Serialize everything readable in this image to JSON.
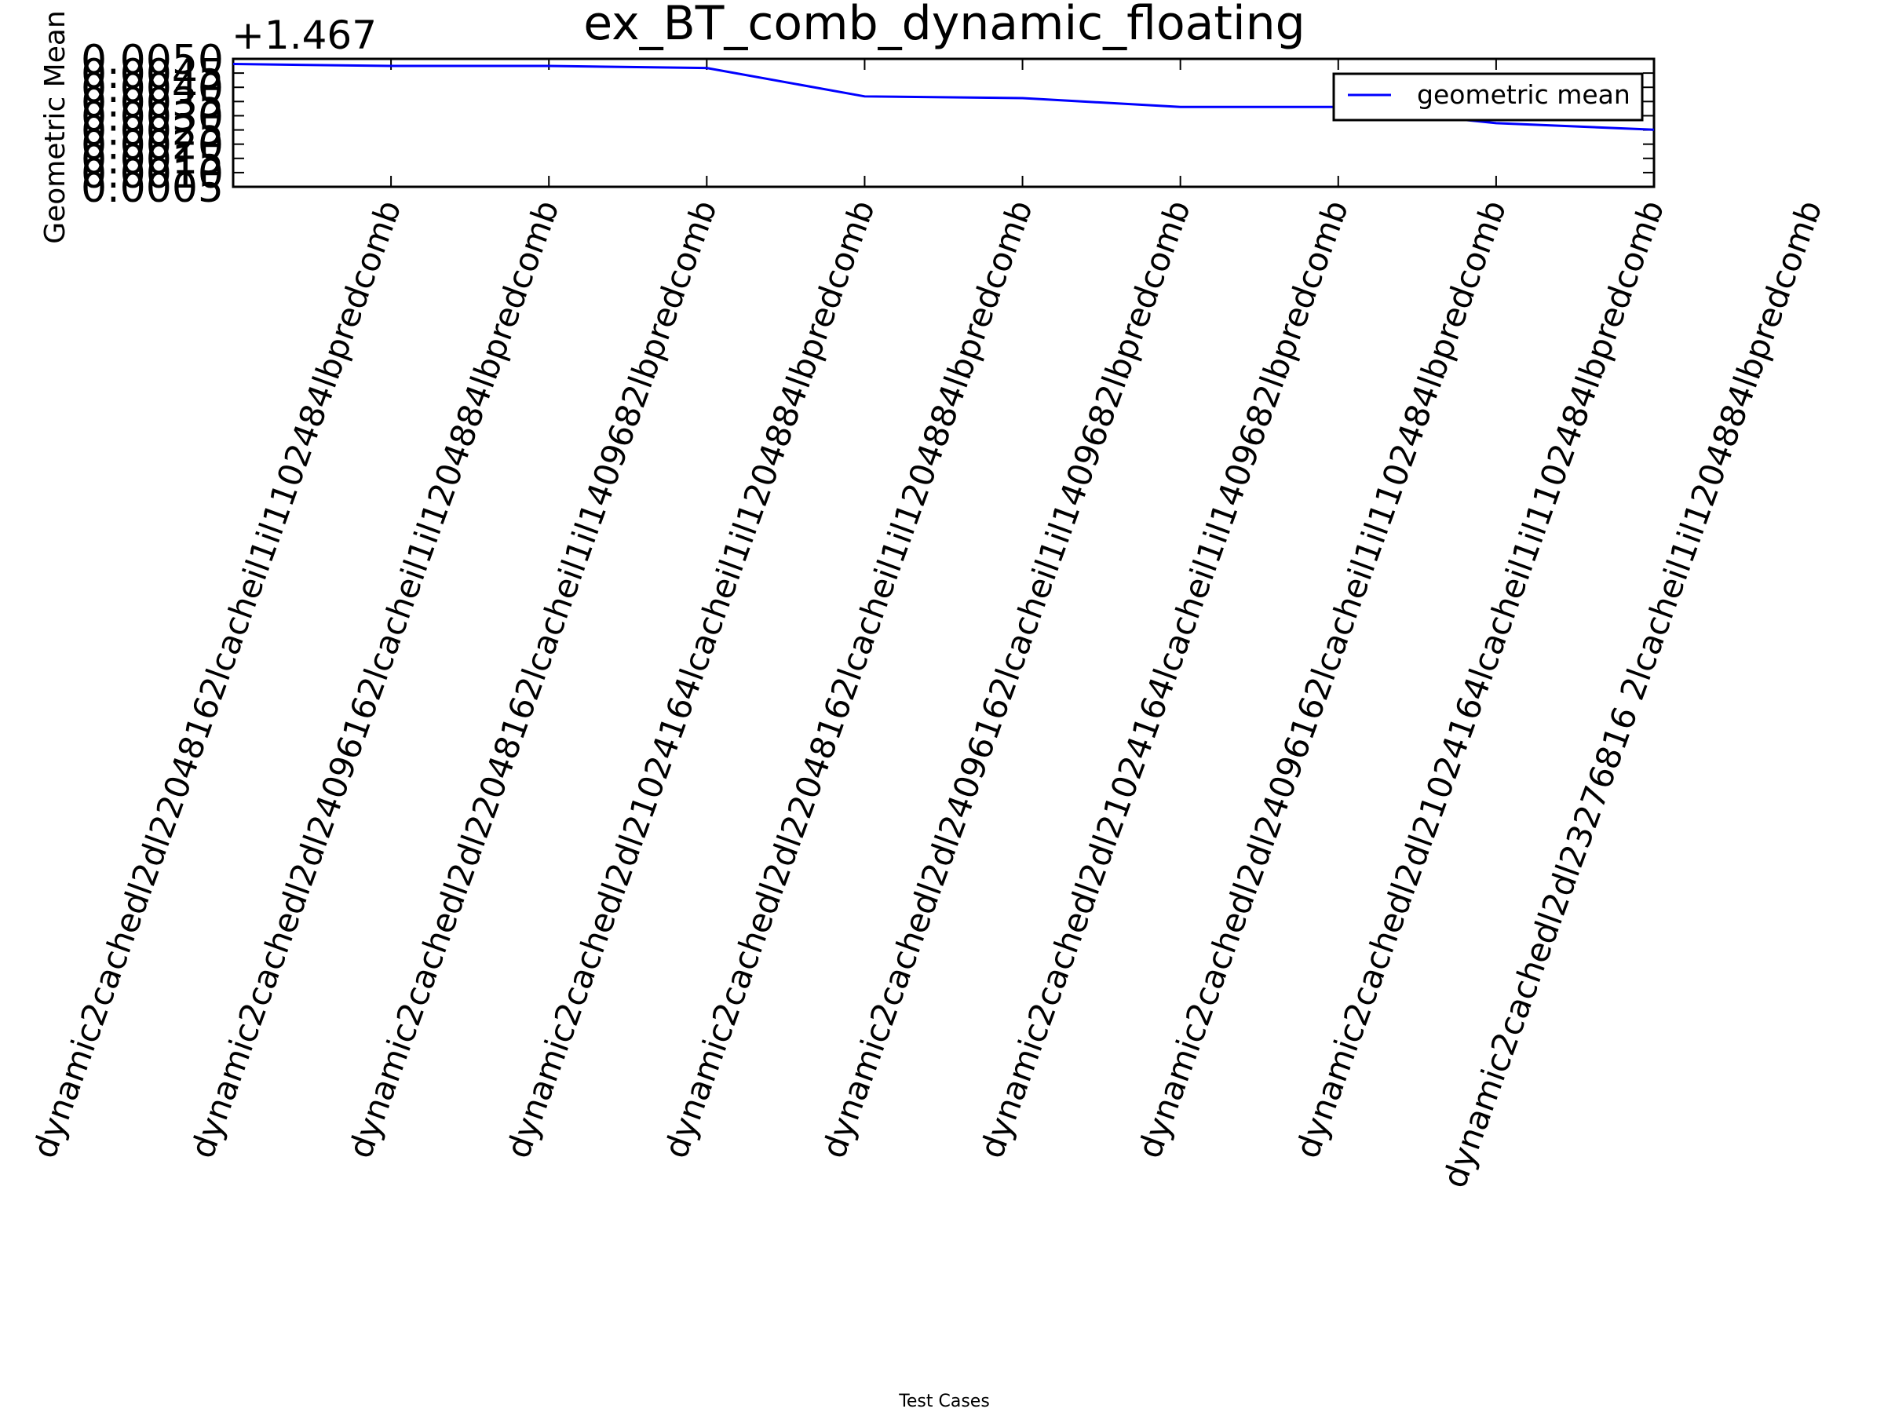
{
  "chart_data": {
    "type": "line",
    "title": "ex_BT_comb_dynamic_floating",
    "xlabel": "Test Cases",
    "ylabel": "Geometric Mean",
    "y_offset_label": "+1.467",
    "y_offset": 1.467,
    "ylim": [
      0.0005,
      0.005
    ],
    "yticks": [
      "0.0005",
      "0.0010",
      "0.0015",
      "0.0020",
      "0.0025",
      "0.0030",
      "0.0035",
      "0.0040",
      "0.0045",
      "0.0050"
    ],
    "xlim": [
      0,
      9
    ],
    "categories": [
      "dynamic2cachedl2dl22048162lcacheil1il1102484lbpredcomb",
      "dynamic2cachedl2dl24096162lcacheil1il1204884lbpredcomb",
      "dynamic2cachedl2dl22048162lcacheil1il1409682lbpredcomb",
      "dynamic2cachedl2dl21024164lcacheil1il1204884lbpredcomb",
      "dynamic2cachedl2dl22048162lcacheil1il1204884lbpredcomb",
      "dynamic2cachedl2dl24096162lcacheil1il1409682lbpredcomb",
      "dynamic2cachedl2dl21024164lcacheil1il1409682lbpredcomb",
      "dynamic2cachedl2dl24096162lcacheil1il1102484lbpredcomb",
      "dynamic2cachedl2dl21024164lcacheil1il1102484lbpredcomb",
      "dynamic2cachedl2dl23276816 2lcacheil1il1204884lbpredcomb"
    ],
    "series": [
      {
        "name": "geometric mean",
        "color": "#0000ff",
        "x": [
          0,
          1,
          2,
          3,
          4,
          5,
          6,
          7,
          8,
          9
        ],
        "values": [
          0.00482,
          0.00475,
          0.00475,
          0.00468,
          0.00368,
          0.00362,
          0.00331,
          0.00331,
          0.00274,
          0.00251
        ]
      }
    ],
    "legend": {
      "placement": "upper right",
      "entries": [
        "geometric mean"
      ]
    },
    "grid": false
  }
}
